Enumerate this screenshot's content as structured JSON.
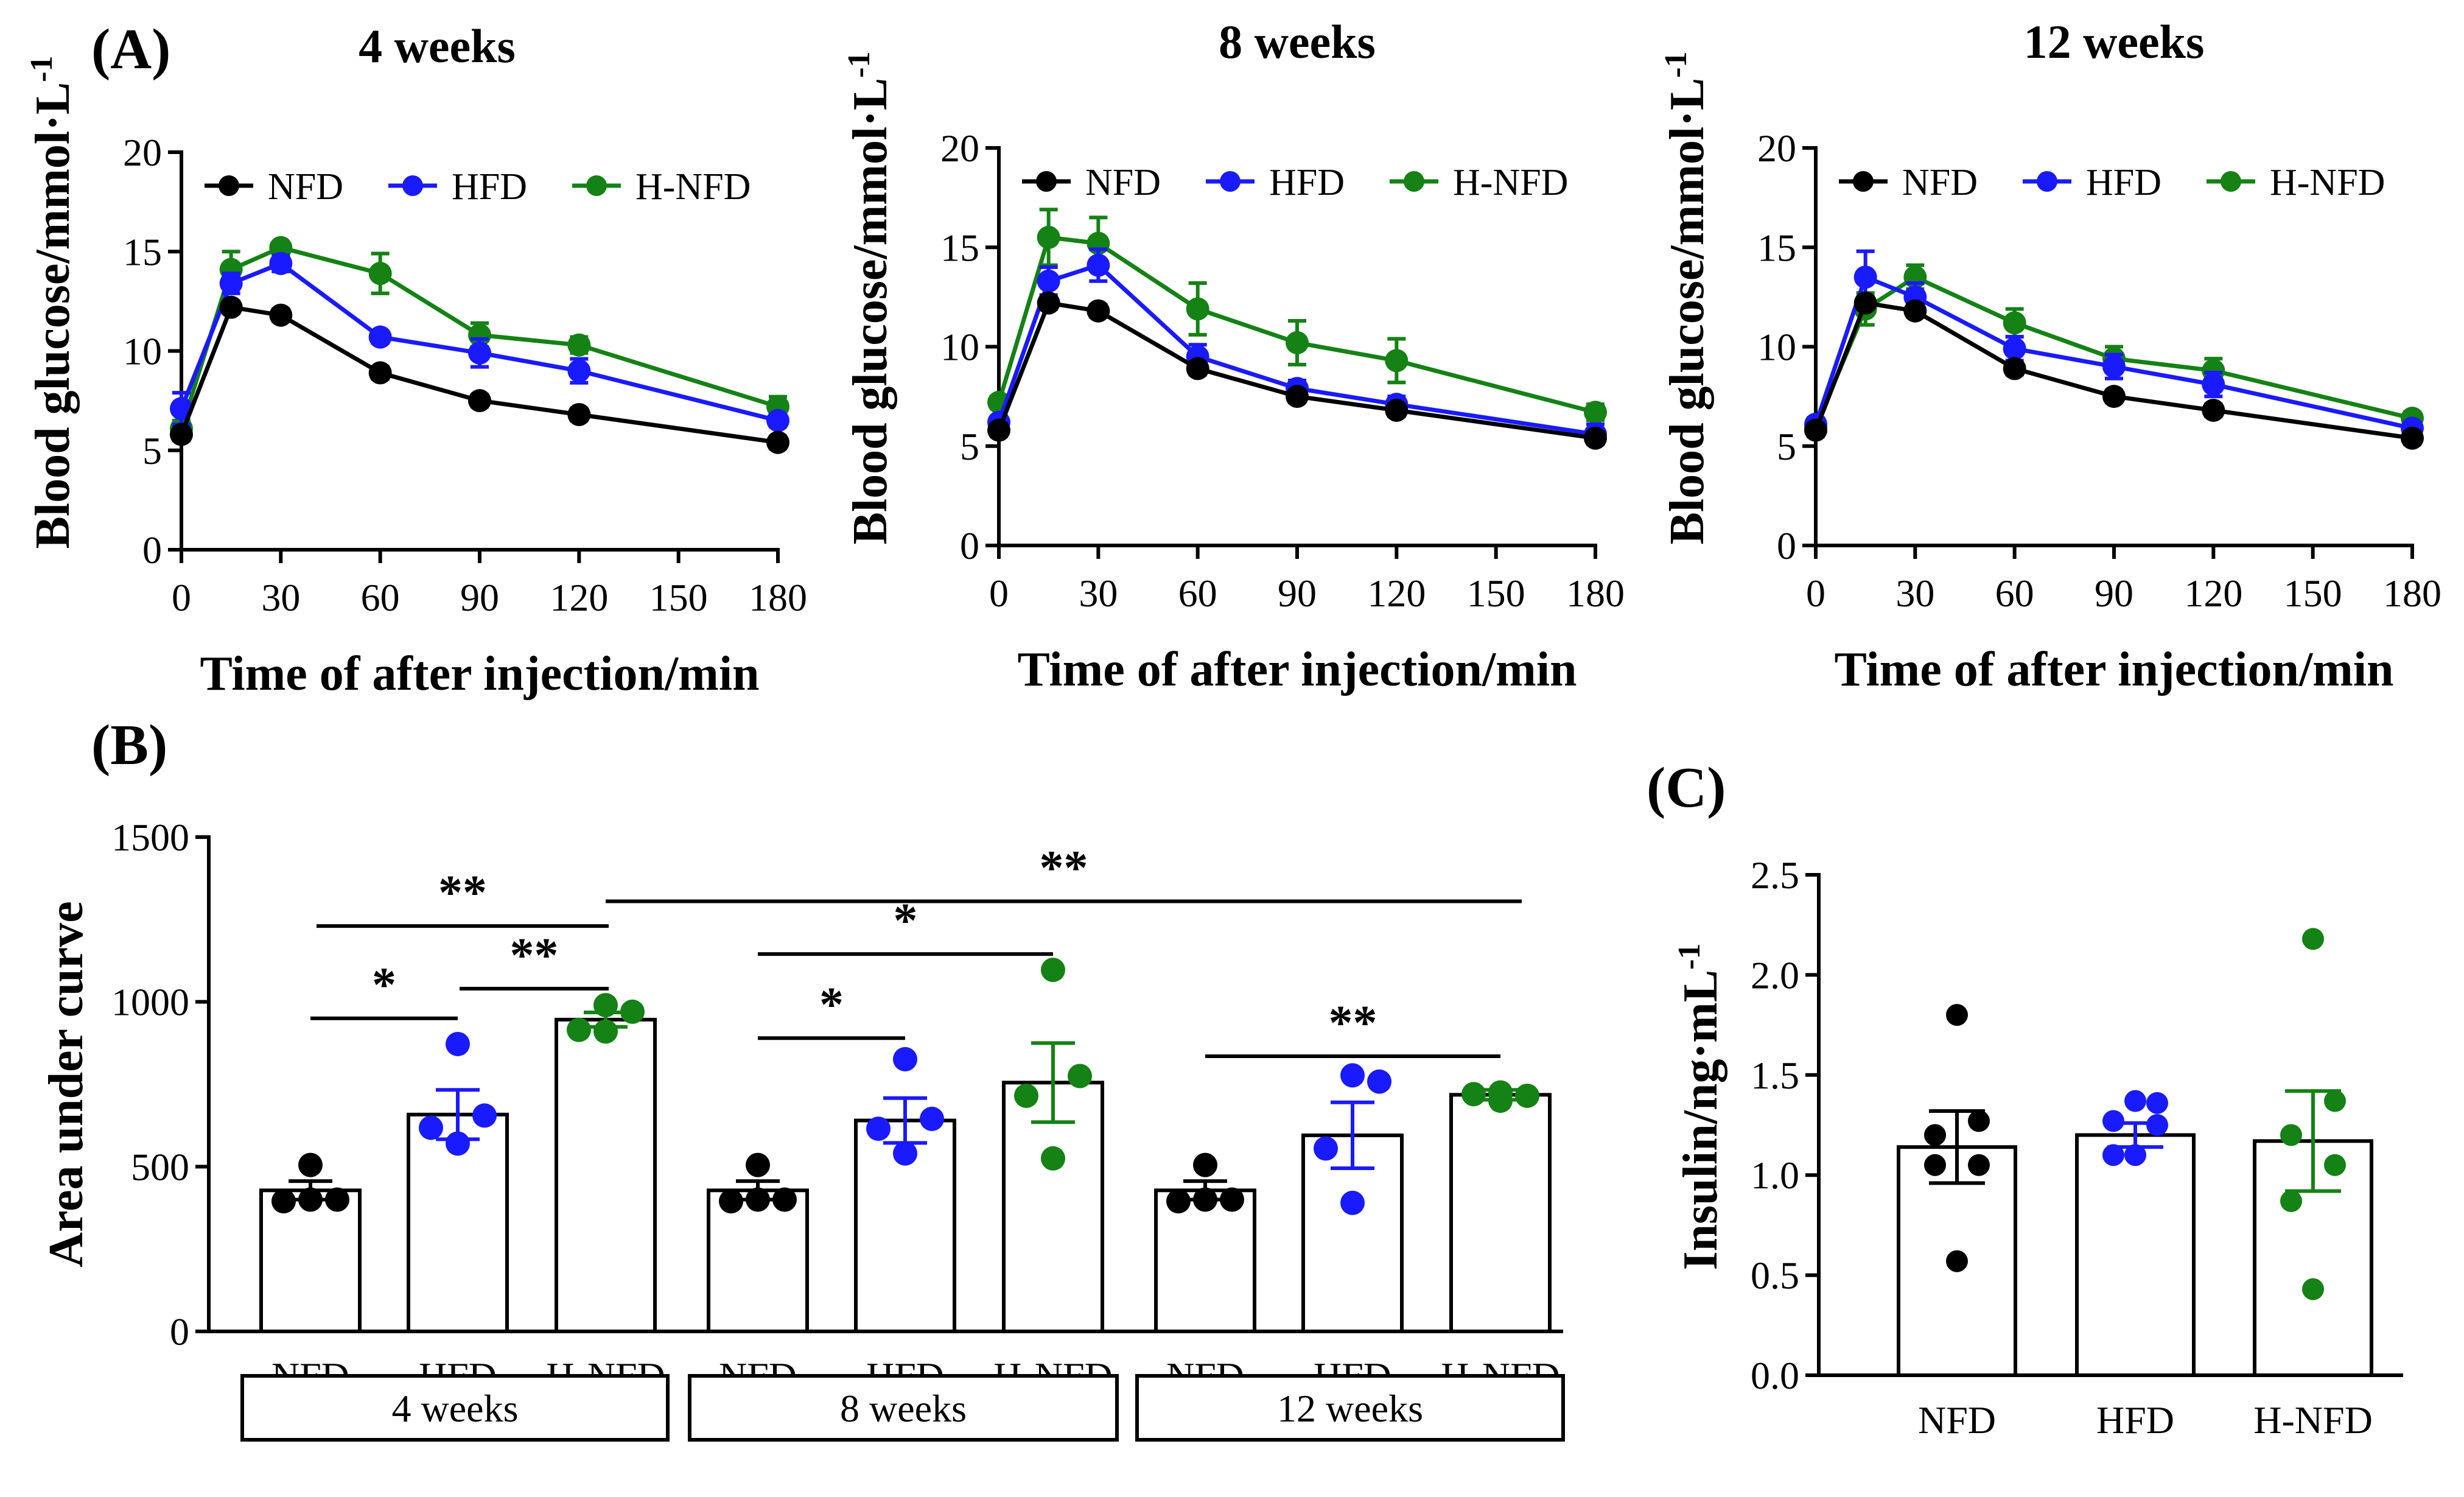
{
  "panel_labels": {
    "a": "(A)",
    "b": "(B)",
    "c": "(C)"
  },
  "colors": {
    "NFD": "#000000",
    "HFD": "#1a1aff",
    "H-NFD": "#148214"
  },
  "chart_data": [
    {
      "type": "line",
      "title": "4 weeks",
      "xlabel": "Time of after injection/min",
      "ylabel": "Blood glucose/mmol·L",
      "ylabel_sup": "-1",
      "xlim": [
        0,
        180
      ],
      "ylim": [
        0,
        20
      ],
      "xticks": [
        "0",
        "30",
        "60",
        "90",
        "120",
        "150",
        "180"
      ],
      "yticks": [
        "0",
        "5",
        "10",
        "15",
        "20"
      ],
      "legend_position": "top",
      "x": [
        0,
        15,
        30,
        60,
        90,
        120,
        180
      ],
      "series": [
        {
          "name": "NFD",
          "values": [
            5.8,
            12.2,
            11.8,
            8.9,
            7.5,
            6.8,
            5.4
          ],
          "err": [
            0.3,
            0.3,
            0.3,
            0.3,
            0.3,
            0.3,
            0.3
          ]
        },
        {
          "name": "HFD",
          "values": [
            7.1,
            13.4,
            14.4,
            10.7,
            9.9,
            9.0,
            6.5
          ],
          "err": [
            0.8,
            0.5,
            0.4,
            0.3,
            0.7,
            0.6,
            0.3
          ]
        },
        {
          "name": "H-NFD",
          "values": [
            6.1,
            14.1,
            15.2,
            13.9,
            10.8,
            10.3,
            7.2
          ],
          "err": [
            0.4,
            0.9,
            0.2,
            1.0,
            0.6,
            0.4,
            0.5
          ]
        }
      ]
    },
    {
      "type": "line",
      "title": "8 weeks",
      "xlabel": "Time of after injection/min",
      "ylabel": "Blood glucose/mmol·L",
      "ylabel_sup": "-1",
      "xlim": [
        0,
        180
      ],
      "ylim": [
        0,
        20
      ],
      "xticks": [
        "0",
        "30",
        "60",
        "90",
        "120",
        "150",
        "180"
      ],
      "yticks": [
        "0",
        "5",
        "10",
        "15",
        "20"
      ],
      "legend_position": "top",
      "x": [
        0,
        15,
        30,
        60,
        90,
        120,
        180
      ],
      "series": [
        {
          "name": "NFD",
          "values": [
            5.8,
            12.2,
            11.8,
            8.9,
            7.5,
            6.8,
            5.4
          ],
          "err": [
            0.3,
            0.3,
            0.3,
            0.3,
            0.3,
            0.3,
            0.3
          ]
        },
        {
          "name": "HFD",
          "values": [
            6.2,
            13.3,
            14.1,
            9.5,
            7.9,
            7.1,
            5.6
          ],
          "err": [
            0.3,
            0.7,
            0.8,
            0.6,
            0.4,
            0.4,
            0.5
          ]
        },
        {
          "name": "H-NFD",
          "values": [
            7.2,
            15.5,
            15.2,
            11.9,
            10.2,
            9.3,
            6.7
          ],
          "err": [
            0.3,
            1.4,
            1.3,
            1.3,
            1.1,
            1.1,
            0.4
          ]
        }
      ]
    },
    {
      "type": "line",
      "title": "12 weeks",
      "xlabel": "Time of after injection/min",
      "ylabel": "Blood glucose/mmol·L",
      "ylabel_sup": "-1",
      "xlim": [
        0,
        180
      ],
      "ylim": [
        0,
        20
      ],
      "xticks": [
        "0",
        "30",
        "60",
        "90",
        "120",
        "150",
        "180"
      ],
      "yticks": [
        "0",
        "5",
        "10",
        "15",
        "20"
      ],
      "legend_position": "top",
      "x": [
        0,
        15,
        30,
        60,
        90,
        120,
        180
      ],
      "series": [
        {
          "name": "NFD",
          "values": [
            5.8,
            12.2,
            11.8,
            8.9,
            7.5,
            6.8,
            5.4
          ],
          "err": [
            0.3,
            0.3,
            0.3,
            0.3,
            0.3,
            0.3,
            0.3
          ]
        },
        {
          "name": "HFD",
          "values": [
            6.1,
            13.5,
            12.5,
            9.9,
            9.0,
            8.1,
            5.9
          ],
          "err": [
            0.3,
            1.3,
            0.7,
            0.6,
            0.6,
            0.6,
            0.3
          ]
        },
        {
          "name": "H-NFD",
          "values": [
            6.0,
            11.9,
            13.5,
            11.2,
            9.4,
            8.8,
            6.4
          ],
          "err": [
            0.3,
            0.8,
            0.6,
            0.7,
            0.6,
            0.6,
            0.3
          ]
        }
      ]
    },
    {
      "type": "bar",
      "ylabel": "Area under curve",
      "ylim": [
        0,
        1500
      ],
      "yticks": [
        "0",
        "500",
        "1000",
        "1500"
      ],
      "groups": [
        "4 weeks",
        "8 weeks",
        "12 weeks"
      ],
      "categories": [
        "NFD",
        "HFD",
        "H-NFD"
      ],
      "bars": [
        {
          "group": "4 weeks",
          "category": "NFD",
          "mean": 428,
          "sem": 28,
          "points": [
            505,
            400,
            395,
            400
          ]
        },
        {
          "group": "4 weeks",
          "category": "HFD",
          "mean": 658,
          "sem": 75,
          "points": [
            872,
            655,
            618,
            570
          ]
        },
        {
          "group": "4 weeks",
          "category": "H-NFD",
          "mean": 946,
          "sem": 22,
          "points": [
            990,
            970,
            915,
            910
          ]
        },
        {
          "group": "8 weeks",
          "category": "NFD",
          "mean": 428,
          "sem": 28,
          "points": [
            505,
            400,
            395,
            400
          ]
        },
        {
          "group": "8 weeks",
          "category": "HFD",
          "mean": 640,
          "sem": 68,
          "points": [
            826,
            645,
            615,
            540
          ]
        },
        {
          "group": "8 weeks",
          "category": "H-NFD",
          "mean": 755,
          "sem": 120,
          "points": [
            1097,
            775,
            715,
            525
          ]
        },
        {
          "group": "12 weeks",
          "category": "NFD",
          "mean": 428,
          "sem": 28,
          "points": [
            505,
            400,
            395,
            400
          ]
        },
        {
          "group": "12 weeks",
          "category": "HFD",
          "mean": 595,
          "sem": 100,
          "points": [
            777,
            758,
            555,
            390
          ]
        },
        {
          "group": "12 weeks",
          "category": "H-NFD",
          "mean": 718,
          "sem": 15,
          "points": [
            725,
            715,
            720,
            700
          ]
        }
      ],
      "significance": [
        {
          "label": "*",
          "from": 0,
          "to": 1,
          "level": 950
        },
        {
          "label": "**",
          "from": 0,
          "to": 2,
          "level": 1230
        },
        {
          "label": "**",
          "from": 1,
          "to": 2,
          "level": 1040
        },
        {
          "label": "*",
          "from": 3,
          "to": 4,
          "level": 890
        },
        {
          "label": "*",
          "from": 3,
          "to": 5,
          "level": 1145
        },
        {
          "label": "**",
          "from": 2,
          "to": 8,
          "level": 1305
        },
        {
          "label": "**",
          "from": 6,
          "to": 8,
          "level": 835
        }
      ]
    },
    {
      "type": "bar",
      "ylabel": "Insulin/ng·mL",
      "ylabel_sup": "-1",
      "ylim": [
        0,
        2.5
      ],
      "yticks": [
        "0.0",
        "0.5",
        "1.0",
        "1.5",
        "2.0",
        "2.5"
      ],
      "categories": [
        "NFD",
        "HFD",
        "H-NFD"
      ],
      "bars": [
        {
          "category": "NFD",
          "mean": 1.14,
          "sem": 0.18,
          "points": [
            1.8,
            1.27,
            1.2,
            1.05,
            1.05,
            0.57
          ]
        },
        {
          "category": "HFD",
          "mean": 1.2,
          "sem": 0.06,
          "points": [
            1.37,
            1.36,
            1.27,
            1.25,
            1.1,
            1.1
          ]
        },
        {
          "category": "H-NFD",
          "mean": 1.17,
          "sem": 0.25,
          "points": [
            2.18,
            1.37,
            1.2,
            1.05,
            0.87,
            0.43
          ]
        }
      ]
    }
  ]
}
